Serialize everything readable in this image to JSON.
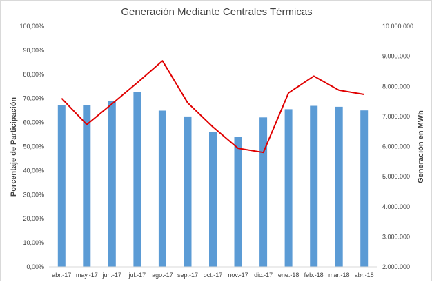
{
  "chart_data": {
    "type": "bar+line",
    "title": "Generación Mediante Centrales Térmicas",
    "categories": [
      "abr.-17",
      "may.-17",
      "jun.-17",
      "jul.-17",
      "ago.-17",
      "sep.-17",
      "oct.-17",
      "nov.-17",
      "dic.-17",
      "ene.-18",
      "feb.-18",
      "mar.-18",
      "abr.-18"
    ],
    "series": [
      {
        "name": "Porcentaje de Participación",
        "type": "bar",
        "axis": "left",
        "color": "#5B9BD5",
        "values": [
          67.3,
          67.3,
          69.0,
          72.6,
          64.9,
          62.5,
          56.0,
          54.0,
          62.1,
          65.5,
          66.9,
          66.5,
          65.0
        ]
      },
      {
        "name": "Generación en MWh",
        "type": "line",
        "axis": "right",
        "color": "#E00000",
        "values": [
          7600000,
          6730000,
          7420000,
          8120000,
          8850000,
          7450000,
          6650000,
          5940000,
          5800000,
          7780000,
          8340000,
          7870000,
          7730000
        ]
      }
    ],
    "y_left": {
      "label": "Porcentaje de Participación",
      "range": [
        0,
        100
      ],
      "ticks": [
        0,
        10,
        20,
        30,
        40,
        50,
        60,
        70,
        80,
        90,
        100
      ],
      "tick_labels": [
        "0,00%",
        "10,00%",
        "20,00%",
        "30,00%",
        "40,00%",
        "50,00%",
        "60,00%",
        "70,00%",
        "80,00%",
        "90,00%",
        "100,00%"
      ]
    },
    "y_right": {
      "label": "Generación en MWh",
      "range": [
        2000000,
        10000000
      ],
      "ticks": [
        2000000,
        3000000,
        4000000,
        5000000,
        6000000,
        7000000,
        8000000,
        9000000,
        10000000
      ],
      "tick_labels": [
        "2.000.000",
        "3.000.000",
        "4.000.000",
        "5.000.000",
        "6.000.000",
        "7.000.000",
        "8.000.000",
        "9.000.000",
        "10.000.000"
      ]
    },
    "grid": false,
    "legend": "none"
  }
}
